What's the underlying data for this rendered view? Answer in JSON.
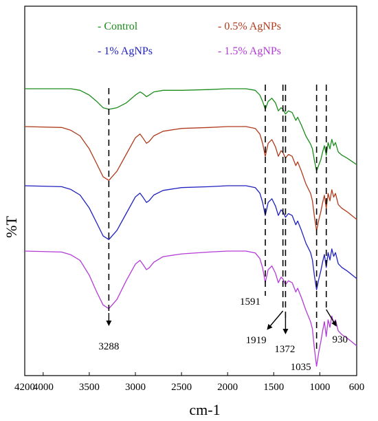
{
  "chart_data": {
    "type": "line",
    "title": "",
    "xlabel": "cm-1",
    "ylabel": "%T",
    "xlim": [
      4200,
      600
    ],
    "x_reversed": true,
    "x_ticks": [
      4200,
      4000,
      3500,
      3000,
      2500,
      2000,
      1500,
      1000,
      600
    ],
    "y_ticks_shown": false,
    "grid": false,
    "legend_position": "top",
    "series": [
      {
        "name": "Control",
        "color": "#1a8c1a",
        "x": [
          4200,
          3700,
          3600,
          3500,
          3420,
          3350,
          3288,
          3200,
          3100,
          3000,
          2950,
          2920,
          2880,
          2850,
          2800,
          2700,
          2500,
          2200,
          2000,
          1800,
          1700,
          1650,
          1620,
          1591,
          1560,
          1520,
          1480,
          1450,
          1420,
          1400,
          1372,
          1340,
          1300,
          1260,
          1240,
          1200,
          1150,
          1100,
          1080,
          1060,
          1035,
          1010,
          990,
          970,
          950,
          930,
          910,
          890,
          870,
          850,
          830,
          800,
          760,
          700,
          650,
          600
        ],
        "y": [
          100,
          100,
          99,
          96,
          92,
          88,
          87,
          88,
          91,
          96,
          98,
          97,
          95,
          96,
          98,
          99,
          99,
          99.5,
          100,
          100,
          99,
          96,
          92,
          87,
          92,
          94,
          91,
          86,
          88,
          87,
          84,
          86,
          85,
          80,
          82,
          77,
          70,
          65,
          62,
          55,
          48,
          52,
          55,
          60,
          64,
          58,
          66,
          62,
          68,
          64,
          66,
          60,
          58,
          56,
          54,
          52
        ]
      },
      {
        "name": "0.5% AgNPs",
        "color": "#b03a1c",
        "x": [
          4200,
          3800,
          3700,
          3600,
          3500,
          3420,
          3350,
          3288,
          3200,
          3100,
          3000,
          2950,
          2920,
          2880,
          2850,
          2800,
          2700,
          2500,
          2200,
          2000,
          1800,
          1700,
          1650,
          1620,
          1591,
          1560,
          1520,
          1480,
          1450,
          1420,
          1400,
          1372,
          1340,
          1300,
          1260,
          1240,
          1200,
          1150,
          1100,
          1080,
          1060,
          1035,
          1010,
          990,
          970,
          950,
          930,
          910,
          890,
          870,
          850,
          830,
          800,
          760,
          700,
          650,
          600
        ],
        "y": [
          100,
          99.5,
          98,
          95,
          88,
          80,
          73,
          71,
          76,
          85,
          94,
          96,
          94,
          91,
          92,
          95,
          97.5,
          99,
          99.5,
          100,
          100,
          99,
          96,
          91,
          84,
          91,
          93,
          89,
          84,
          87,
          86,
          83,
          85,
          84,
          79,
          81,
          76,
          69,
          64,
          60,
          52,
          44,
          50,
          54,
          59,
          63,
          56,
          64,
          60,
          66,
          62,
          64,
          58,
          56,
          54,
          52,
          50
        ]
      },
      {
        "name": "1% AgNPs",
        "color": "#1f1fbf",
        "x": [
          4200,
          3800,
          3700,
          3600,
          3500,
          3420,
          3350,
          3288,
          3200,
          3100,
          3000,
          2950,
          2920,
          2880,
          2850,
          2800,
          2700,
          2500,
          2200,
          2000,
          1800,
          1700,
          1650,
          1620,
          1591,
          1560,
          1520,
          1480,
          1450,
          1420,
          1400,
          1372,
          1340,
          1300,
          1260,
          1240,
          1200,
          1150,
          1100,
          1080,
          1060,
          1035,
          1010,
          990,
          970,
          950,
          930,
          910,
          890,
          870,
          850,
          830,
          800,
          760,
          700,
          650,
          600
        ],
        "y": [
          100,
          99.5,
          98,
          95,
          88,
          80,
          73,
          71,
          76,
          85,
          94,
          96,
          94,
          91,
          92,
          95,
          97.5,
          99,
          99.5,
          100,
          100,
          99,
          96,
          91,
          84,
          91,
          93,
          89,
          84,
          87,
          86,
          83,
          85,
          84,
          79,
          81,
          76,
          69,
          64,
          60,
          52,
          44,
          50,
          54,
          59,
          63,
          56,
          64,
          60,
          66,
          62,
          64,
          58,
          56,
          54,
          52,
          50
        ]
      },
      {
        "name": "1.5% AgNPs",
        "color": "#b23ad6",
        "x": [
          4200,
          3800,
          3700,
          3600,
          3500,
          3420,
          3350,
          3288,
          3200,
          3100,
          3000,
          2950,
          2920,
          2880,
          2850,
          2800,
          2700,
          2500,
          2200,
          2000,
          1800,
          1700,
          1650,
          1620,
          1591,
          1560,
          1520,
          1480,
          1450,
          1420,
          1400,
          1372,
          1340,
          1300,
          1260,
          1240,
          1200,
          1150,
          1100,
          1080,
          1060,
          1035,
          1010,
          990,
          970,
          950,
          930,
          910,
          890,
          870,
          850,
          830,
          800,
          760,
          700,
          650,
          600
        ],
        "y": [
          100,
          99.5,
          98,
          95,
          87,
          78,
          71,
          69,
          74,
          84,
          93,
          95,
          93,
          90,
          91,
          94,
          97,
          98.5,
          99.5,
          100,
          100,
          99,
          96,
          91,
          83,
          90,
          92,
          88,
          83,
          86,
          85,
          82,
          84,
          83,
          78,
          80,
          75,
          68,
          62,
          58,
          48,
          38,
          46,
          51,
          57,
          62,
          54,
          63,
          59,
          65,
          61,
          63,
          57,
          55,
          53,
          51,
          49
        ]
      }
    ],
    "annotations": [
      {
        "label": "3288",
        "x": 3288
      },
      {
        "label": "1591",
        "x": 1591
      },
      {
        "label": "1919",
        "x": 1400
      },
      {
        "label": "1372",
        "x": 1372
      },
      {
        "label": "1035",
        "x": 1035
      },
      {
        "label": "930",
        "x": 930
      }
    ]
  }
}
